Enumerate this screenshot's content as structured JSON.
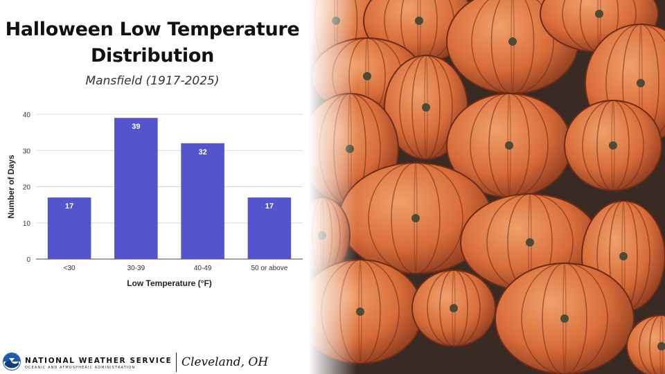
{
  "slide": {
    "title_line1": "Halloween Low Temperature",
    "title_line2": "Distribution",
    "subtitle": "Mansfield (1917-2025)"
  },
  "chart_data": {
    "type": "bar",
    "categories": [
      "<30",
      "30-39",
      "40-49",
      "50 or above"
    ],
    "values": [
      17,
      39,
      32,
      17
    ],
    "xlabel": "Low Temperature (°F)",
    "ylabel": "Number of Days",
    "ylim": [
      0,
      40
    ],
    "yticks": [
      0,
      10,
      20,
      30,
      40
    ],
    "grid": true,
    "bar_color": "#5454CC",
    "data_labels": true
  },
  "footer": {
    "agency_name": "NATIONAL WEATHER SERVICE",
    "agency_sub": "OCEANIC AND ATMOSPHERIC ADMINISTRATION",
    "office": "Cleveland, OH"
  },
  "colors": {
    "accent": "#5454CC",
    "noaa_blue": "#1C5CA8"
  },
  "photo": {
    "subject_icon": "pumpkins-photo"
  }
}
